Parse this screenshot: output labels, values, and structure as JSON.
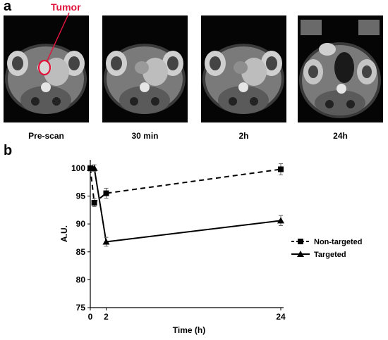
{
  "figure": {
    "panel_a_label": "a",
    "panel_b_label": "b",
    "tumor_annotation": "Tumor",
    "tumor_annotation_color": "#e0143c",
    "scan_labels": [
      "Pre-scan",
      "30 min",
      "2h",
      "24h"
    ]
  },
  "chart_data": {
    "type": "line",
    "xlabel": "Time (h)",
    "ylabel": "A.U.",
    "xlim": [
      0,
      24
    ],
    "ylim": [
      75,
      100
    ],
    "xticks": [
      0,
      2,
      24
    ],
    "yticks": [
      75,
      80,
      85,
      90,
      95,
      100
    ],
    "legend_position": "right",
    "series": [
      {
        "name": "Non-targeted",
        "marker": "square",
        "linestyle": "dashed",
        "x": [
          0,
          0.5,
          2,
          24
        ],
        "y": [
          100,
          93.8,
          95.5,
          99.8
        ],
        "error": [
          0.5,
          0.7,
          0.9,
          1.0
        ]
      },
      {
        "name": "Targeted",
        "marker": "triangle",
        "linestyle": "solid",
        "x": [
          0,
          0.5,
          2,
          24
        ],
        "y": [
          100,
          100,
          86.8,
          90.6
        ],
        "error": [
          0.5,
          0.6,
          0.8,
          0.9
        ]
      }
    ]
  }
}
